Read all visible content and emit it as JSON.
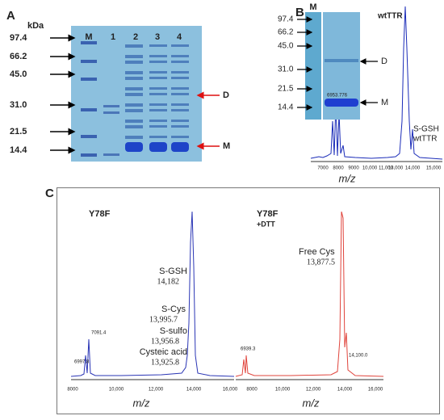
{
  "panel_a": {
    "label": "A",
    "unit": "kDa",
    "lanes": [
      "M",
      "1",
      "2",
      "3",
      "4"
    ],
    "markers": [
      "97.4",
      "66.2",
      "45.0",
      "31.0",
      "21.5",
      "14.4"
    ],
    "bands": [
      "D",
      "M"
    ]
  },
  "panel_b": {
    "label": "B",
    "inset_lane": "M",
    "markers": [
      "97.4",
      "66.2",
      "45.0",
      "31.0",
      "21.5",
      "14.4"
    ],
    "bands": [
      "D",
      "M"
    ],
    "main_peak": "wtTTR",
    "side_peak": [
      "S-GSH",
      "wtTTR"
    ],
    "small_peak": "6953.776",
    "xticks": [
      "7000",
      "8000",
      "9000",
      "10,000",
      "11,000",
      "13,000",
      "14,000",
      "15,000"
    ],
    "xlabel": "m/z"
  },
  "panel_c": {
    "label": "C",
    "left": {
      "title": "Y78F",
      "peaks": [
        [
          "S-GSH",
          "14,182"
        ],
        [
          "S-Cys",
          "13,995.7"
        ],
        [
          "S-sulfo",
          "13,956.8"
        ],
        [
          "Cysteic acid",
          "13,925.8"
        ]
      ],
      "small_peaks": [
        "7091.4",
        "6997.8"
      ],
      "xticks": [
        "8000",
        "10,000",
        "12,000",
        "14,000",
        "16,000"
      ],
      "xlabel": "m/z"
    },
    "right": {
      "title": "Y78F",
      "subtitle": "+DTT",
      "peaks": [
        [
          "Free Cys",
          "13,877.5"
        ]
      ],
      "small_peaks": [
        "6939.3",
        "14,100.0"
      ],
      "xticks": [
        "8000",
        "10,000",
        "12,000",
        "14,000",
        "16,000"
      ],
      "xlabel": "m/z"
    }
  }
}
